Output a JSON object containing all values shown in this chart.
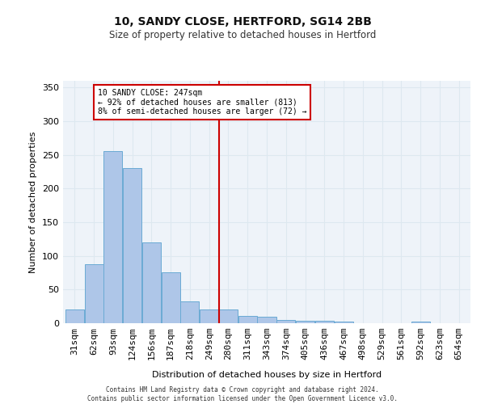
{
  "title": "10, SANDY CLOSE, HERTFORD, SG14 2BB",
  "subtitle": "Size of property relative to detached houses in Hertford",
  "xlabel": "Distribution of detached houses by size in Hertford",
  "ylabel": "Number of detached properties",
  "bin_labels": [
    "31sqm",
    "62sqm",
    "93sqm",
    "124sqm",
    "156sqm",
    "187sqm",
    "218sqm",
    "249sqm",
    "280sqm",
    "311sqm",
    "343sqm",
    "374sqm",
    "405sqm",
    "436sqm",
    "467sqm",
    "498sqm",
    "529sqm",
    "561sqm",
    "592sqm",
    "623sqm",
    "654sqm"
  ],
  "bar_heights": [
    20,
    88,
    256,
    230,
    120,
    76,
    32,
    20,
    20,
    11,
    10,
    5,
    4,
    4,
    3,
    0,
    0,
    0,
    2,
    0,
    0
  ],
  "bar_color": "#aec6e8",
  "bar_edge_color": "#6aaad4",
  "vline_x": 7.5,
  "vline_color": "#cc0000",
  "annotation_text": "10 SANDY CLOSE: 247sqm\n← 92% of detached houses are smaller (813)\n8% of semi-detached houses are larger (72) →",
  "annotation_box_color": "#ffffff",
  "annotation_box_edge": "#cc0000",
  "grid_color": "#dde8f0",
  "background_color": "#eef3f9",
  "footer_line1": "Contains HM Land Registry data © Crown copyright and database right 2024.",
  "footer_line2": "Contains public sector information licensed under the Open Government Licence v3.0.",
  "ylim": [
    0,
    360
  ],
  "yticks": [
    0,
    50,
    100,
    150,
    200,
    250,
    300,
    350
  ]
}
